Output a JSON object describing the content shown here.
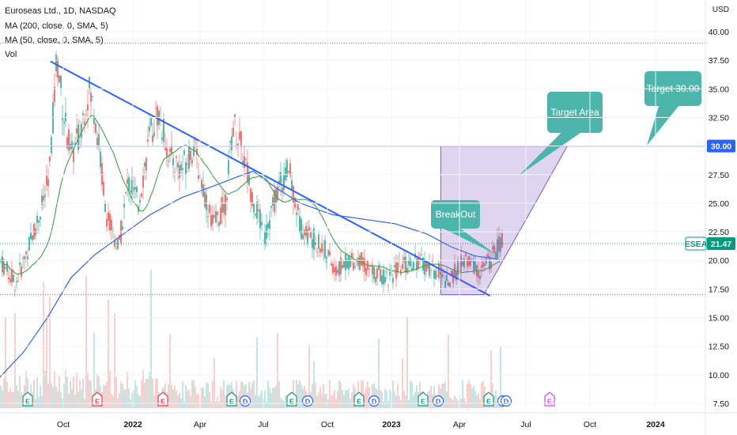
{
  "header": {
    "symbol_line": "Euroseas Ltd., 1D, NASDAQ",
    "ma200_line": "MA (200, close, 0, SMA, 5)",
    "ma50_line": "MA (50, close, 0, SMA, 5)",
    "vol_line": "Vol"
  },
  "chart_data": {
    "type": "candlestick",
    "price_axis": {
      "currency": "USD",
      "ticks": [
        "40.00",
        "37.50",
        "35.00",
        "32.50",
        "30.00",
        "27.50",
        "25.00",
        "22.50",
        "20.00",
        "17.50",
        "15.00",
        "12.50",
        "10.00",
        "7.50"
      ],
      "ylim": [
        6.8,
        41.5
      ]
    },
    "time_axis": {
      "ticks": [
        "Oct",
        "2022",
        "Apr",
        "Jul",
        "Oct",
        "2023",
        "Apr",
        "Jul",
        "Oct",
        "2024"
      ],
      "bold_ticks": [
        "2022",
        "2023",
        "2024"
      ]
    },
    "last_price": {
      "label": "ESEA",
      "value": "21.47",
      "color": "#089981"
    },
    "horizontal_line": {
      "value": 30.0,
      "label": "30.00",
      "color": "#2962ff"
    },
    "support_line": {
      "value": 17.0,
      "style": "dotted"
    },
    "resistance_dotted": {
      "value": 39.0,
      "style": "dotted"
    },
    "trendline": {
      "from": {
        "date": "2021-09-24",
        "price": 37.4
      },
      "to": {
        "date": "2023-08-20",
        "price": 16.9
      },
      "color": "#2962ff"
    },
    "target_zone": {
      "label": "Target Area",
      "color": "#7e57c2",
      "points": [
        [
          "2023-06-03",
          30.0
        ],
        [
          "2023-12-20",
          30.0
        ],
        [
          "2023-08-10",
          17.0
        ],
        [
          "2023-06-03",
          17.0
        ]
      ]
    },
    "annotations": [
      {
        "text": "BreakOut",
        "color": "#4db6ac"
      },
      {
        "text": "Target Area",
        "color": "#4db6ac"
      },
      {
        "text": "Target 30.00",
        "color": "#4db6ac"
      }
    ],
    "event_markers": [
      {
        "type": "E",
        "color": "#089981"
      },
      {
        "type": "E",
        "color": "#f23645"
      },
      {
        "type": "E",
        "color": "#f23645"
      },
      {
        "type": "E",
        "color": "#089981"
      },
      {
        "type": "D",
        "color": "#2962ff"
      },
      {
        "type": "E",
        "color": "#089981"
      },
      {
        "type": "D",
        "color": "#2962ff"
      },
      {
        "type": "E",
        "color": "#089981"
      },
      {
        "type": "D",
        "color": "#2962ff"
      },
      {
        "type": "E",
        "color": "#089981"
      },
      {
        "type": "D",
        "color": "#2962ff"
      },
      {
        "type": "E",
        "color": "#089981"
      },
      {
        "type": "D",
        "color": "#2962ff"
      },
      {
        "type": "D",
        "color": "#2962ff"
      },
      {
        "type": "E",
        "color": "#e040fb"
      }
    ],
    "series": [
      {
        "name": "MA (200, close, 0, SMA, 5)",
        "color": "#2962ff"
      },
      {
        "name": "MA (50, close, 0, SMA, 5)",
        "color": "#43a047"
      }
    ]
  },
  "colors": {
    "up": "#26a69a",
    "down": "#ef5350",
    "grid": "#f0f3fa"
  }
}
